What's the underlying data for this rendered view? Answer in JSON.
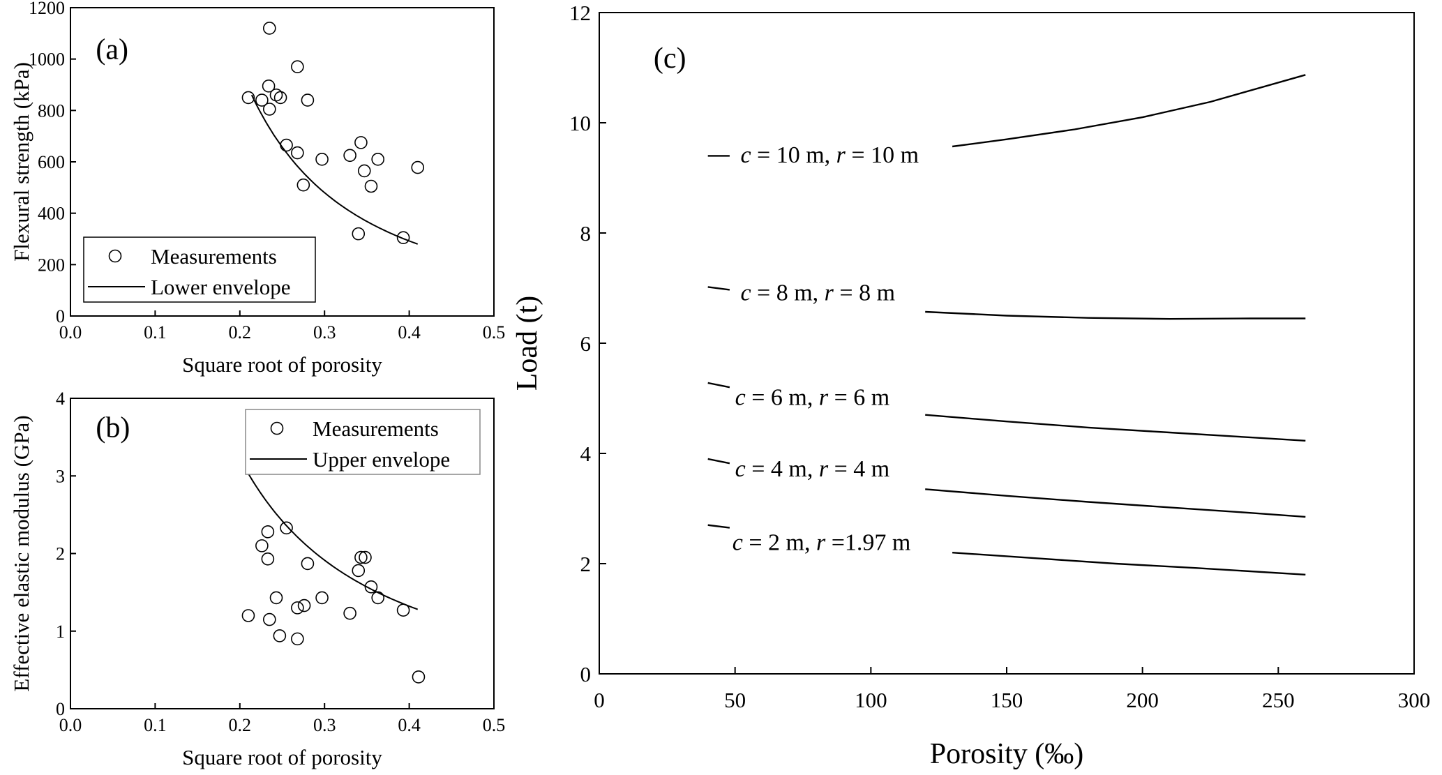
{
  "chart_data": [
    {
      "type": "scatter",
      "panel_label": "(a)",
      "xlabel": "Square root of porosity",
      "ylabel": "Flexural strength (kPa)",
      "xlim": [
        0,
        0.5
      ],
      "ylim": [
        0,
        1200
      ],
      "xticks": [
        "0.0",
        "0.1",
        "0.2",
        "0.3",
        "0.4",
        "0.5"
      ],
      "yticks": [
        "0",
        "200",
        "400",
        "600",
        "800",
        "1000",
        "1200"
      ],
      "legend": {
        "placement": "bottom-left",
        "entries": [
          "Measurements",
          "Lower envelope"
        ]
      },
      "series": [
        {
          "name": "Measurements",
          "marker": "open-circle",
          "points": [
            [
              0.21,
              850
            ],
            [
              0.226,
              840
            ],
            [
              0.235,
              1120
            ],
            [
              0.234,
              895
            ],
            [
              0.235,
              805
            ],
            [
              0.243,
              860
            ],
            [
              0.248,
              850
            ],
            [
              0.255,
              665
            ],
            [
              0.268,
              970
            ],
            [
              0.268,
              635
            ],
            [
              0.275,
              510
            ],
            [
              0.28,
              840
            ],
            [
              0.297,
              610
            ],
            [
              0.33,
              625
            ],
            [
              0.343,
              675
            ],
            [
              0.347,
              565
            ],
            [
              0.355,
              505
            ],
            [
              0.363,
              610
            ],
            [
              0.34,
              320
            ],
            [
              0.393,
              305
            ],
            [
              0.41,
              578
            ]
          ]
        },
        {
          "name": "Lower envelope",
          "line": true,
          "points": [
            [
              0.214,
              860
            ],
            [
              0.23,
              760
            ],
            [
              0.25,
              660
            ],
            [
              0.27,
              575
            ],
            [
              0.29,
              510
            ],
            [
              0.31,
              455
            ],
            [
              0.33,
              405
            ],
            [
              0.35,
              365
            ],
            [
              0.37,
              330
            ],
            [
              0.39,
              300
            ],
            [
              0.41,
              280
            ]
          ]
        }
      ]
    },
    {
      "type": "scatter",
      "panel_label": "(b)",
      "xlabel": "Square root of porosity",
      "ylabel": "Effective elastic modulus (GPa)",
      "xlim": [
        0,
        0.5
      ],
      "ylim": [
        0,
        4
      ],
      "xticks": [
        "0.0",
        "0.1",
        "0.2",
        "0.3",
        "0.4",
        "0.5"
      ],
      "yticks": [
        "0",
        "1",
        "2",
        "3",
        "4"
      ],
      "legend": {
        "placement": "top-right",
        "entries": [
          "Measurements",
          "Upper envelope"
        ]
      },
      "series": [
        {
          "name": "Measurements",
          "marker": "open-circle",
          "points": [
            [
              0.21,
              1.2
            ],
            [
              0.226,
              2.1
            ],
            [
              0.233,
              2.28
            ],
            [
              0.233,
              1.93
            ],
            [
              0.235,
              1.15
            ],
            [
              0.243,
              1.43
            ],
            [
              0.247,
              0.94
            ],
            [
              0.255,
              2.33
            ],
            [
              0.268,
              1.3
            ],
            [
              0.268,
              0.9
            ],
            [
              0.276,
              1.33
            ],
            [
              0.28,
              1.87
            ],
            [
              0.297,
              1.43
            ],
            [
              0.33,
              1.23
            ],
            [
              0.34,
              1.78
            ],
            [
              0.343,
              1.95
            ],
            [
              0.348,
              1.95
            ],
            [
              0.355,
              1.57
            ],
            [
              0.363,
              1.43
            ],
            [
              0.393,
              1.27
            ],
            [
              0.411,
              0.41
            ]
          ]
        },
        {
          "name": "Upper envelope",
          "line": true,
          "points": [
            [
              0.21,
              3.03
            ],
            [
              0.23,
              2.7
            ],
            [
              0.25,
              2.42
            ],
            [
              0.27,
              2.19
            ],
            [
              0.29,
              2.0
            ],
            [
              0.31,
              1.82
            ],
            [
              0.33,
              1.67
            ],
            [
              0.35,
              1.54
            ],
            [
              0.37,
              1.43
            ],
            [
              0.39,
              1.35
            ],
            [
              0.41,
              1.28
            ]
          ]
        }
      ]
    },
    {
      "type": "line",
      "panel_label": "(c)",
      "xlabel": "Porosity (‰)",
      "ylabel": "Load (t)",
      "xlim": [
        0,
        300
      ],
      "ylim": [
        0,
        12
      ],
      "xticks": [
        "0",
        "50",
        "100",
        "150",
        "200",
        "250",
        "300"
      ],
      "yticks": [
        "0",
        "2",
        "4",
        "6",
        "8",
        "10",
        "12"
      ],
      "series": [
        {
          "label": "c = 10 m, r = 10 m",
          "segments": [
            [
              [
                40,
                9.4
              ],
              [
                48,
                9.4
              ]
            ],
            [
              [
                130,
                9.57
              ],
              [
                150,
                9.7
              ],
              [
                175,
                9.88
              ],
              [
                200,
                10.1
              ],
              [
                225,
                10.38
              ],
              [
                260,
                10.87
              ]
            ]
          ]
        },
        {
          "label": "c = 8 m, r = 8 m",
          "segments": [
            [
              [
                40,
                7.02
              ],
              [
                48,
                6.97
              ]
            ],
            [
              [
                120,
                6.57
              ],
              [
                150,
                6.5
              ],
              [
                180,
                6.46
              ],
              [
                210,
                6.44
              ],
              [
                240,
                6.45
              ],
              [
                260,
                6.45
              ]
            ]
          ]
        },
        {
          "label": "c = 6 m, r = 6 m",
          "segments": [
            [
              [
                40,
                5.28
              ],
              [
                48,
                5.2
              ]
            ],
            [
              [
                120,
                4.7
              ],
              [
                150,
                4.58
              ],
              [
                180,
                4.47
              ],
              [
                210,
                4.38
              ],
              [
                240,
                4.29
              ],
              [
                260,
                4.23
              ]
            ]
          ]
        },
        {
          "label": "c = 4 m, r = 4 m",
          "segments": [
            [
              [
                40,
                3.9
              ],
              [
                48,
                3.82
              ]
            ],
            [
              [
                120,
                3.35
              ],
              [
                150,
                3.23
              ],
              [
                180,
                3.12
              ],
              [
                210,
                3.02
              ],
              [
                240,
                2.92
              ],
              [
                260,
                2.85
              ]
            ]
          ]
        },
        {
          "label": "c = 2 m, r =1.97 m",
          "segments": [
            [
              [
                40,
                2.7
              ],
              [
                48,
                2.65
              ]
            ],
            [
              [
                130,
                2.2
              ],
              [
                160,
                2.1
              ],
              [
                190,
                2.0
              ],
              [
                220,
                1.92
              ],
              [
                260,
                1.8
              ]
            ]
          ]
        }
      ]
    }
  ]
}
